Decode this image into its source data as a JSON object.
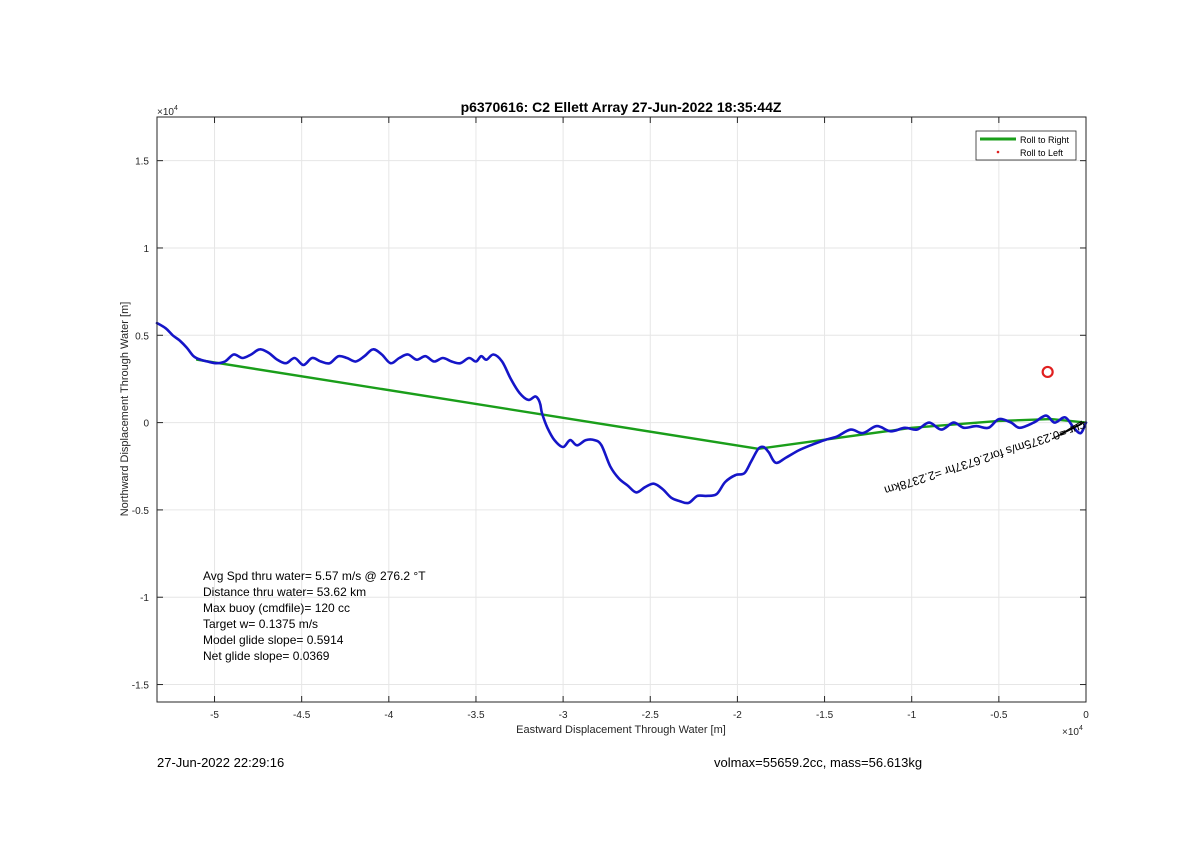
{
  "chart_data": {
    "type": "line",
    "title": "p6370616: C2 Ellett Array 27-Jun-2022 18:35:44Z",
    "xlabel": "Eastward Displacement Through Water [m]",
    "ylabel": "Northward Displacement Through Water [m]",
    "x_exponent_label": "×10",
    "x_exponent": "4",
    "y_exponent_label": "×10",
    "y_exponent": "4",
    "xlim": [
      -53300,
      0
    ],
    "ylim": [
      -16000,
      17500
    ],
    "xticks": [
      -50000,
      -45000,
      -40000,
      -35000,
      -30000,
      -25000,
      -20000,
      -15000,
      -10000,
      -5000,
      0
    ],
    "xtick_labels": [
      "-5",
      "-4.5",
      "-4",
      "-3.5",
      "-3",
      "-2.5",
      "-2",
      "-1.5",
      "-1",
      "-0.5",
      "0"
    ],
    "yticks": [
      -15000,
      -10000,
      -5000,
      0,
      5000,
      10000,
      15000
    ],
    "ytick_labels": [
      "-1.5",
      "-1",
      "-0.5",
      "0",
      "0.5",
      "1",
      "1.5"
    ],
    "grid": true,
    "legend_position": "top-right",
    "legend": [
      {
        "label": "Roll to Right",
        "color": "#1a9e1a",
        "style": "line"
      },
      {
        "label": "Roll to Left",
        "color": "#e02020",
        "style": "dot"
      }
    ],
    "series": [
      {
        "name": "Roll to Right",
        "color": "#1a9e1a",
        "x": [
          0,
          -2000,
          -5000,
          -10000,
          -18800,
          -51000
        ],
        "y": [
          0,
          200,
          100,
          -300,
          -1500,
          3600
        ]
      },
      {
        "color": "#1515c8",
        "x": [
          0,
          -300,
          -700,
          -1200,
          -1800,
          -2300,
          -3000,
          -3800,
          -4300,
          -5000,
          -5600,
          -6300,
          -7000,
          -7600,
          -8300,
          -9000,
          -9700,
          -10400,
          -11200,
          -12000,
          -12800,
          -13500,
          -14300,
          -15000,
          -15800,
          -16500,
          -17200,
          -17800,
          -18200,
          -18500,
          -18800,
          -19200,
          -19600,
          -20100,
          -20700,
          -21200,
          -21800,
          -22300,
          -22800,
          -23300,
          -23800,
          -24300,
          -24800,
          -25300,
          -25800,
          -26300,
          -26800,
          -27300,
          -27800,
          -28200,
          -28700,
          -29200,
          -29600,
          -30000,
          -30500,
          -30900,
          -31200,
          -31300,
          -31400,
          -31600,
          -32000,
          -32500,
          -33000,
          -33500,
          -34000,
          -34400,
          -34700,
          -35000,
          -35400,
          -35900,
          -36400,
          -36900,
          -37400,
          -37900,
          -38400,
          -38900,
          -39400,
          -39900,
          -40400,
          -40900,
          -41400,
          -41900,
          -42400,
          -42900,
          -43400,
          -43900,
          -44400,
          -44900,
          -45400,
          -45900,
          -46400,
          -46900,
          -47400,
          -47900,
          -48400,
          -48900,
          -49400,
          -49900,
          -50400,
          -50800,
          -51200,
          -51600,
          -52000,
          -52400,
          -52800,
          -53300
        ],
        "y": [
          0,
          -600,
          -300,
          300,
          0,
          400,
          0,
          -300,
          0,
          200,
          -300,
          -200,
          -300,
          0,
          -400,
          0,
          -400,
          -300,
          -500,
          -200,
          -600,
          -400,
          -800,
          -1000,
          -1300,
          -1600,
          -2000,
          -2300,
          -1700,
          -1400,
          -1500,
          -2200,
          -2900,
          -3000,
          -3400,
          -4100,
          -4200,
          -4200,
          -4600,
          -4500,
          -4300,
          -3800,
          -3500,
          -3700,
          -4000,
          -3600,
          -3200,
          -2500,
          -1300,
          -1000,
          -1000,
          -1300,
          -1000,
          -1400,
          -1000,
          -300,
          500,
          1000,
          1300,
          1500,
          1300,
          1700,
          2500,
          3500,
          3900,
          3600,
          3800,
          3500,
          3700,
          3400,
          3500,
          3700,
          3500,
          3800,
          3600,
          3900,
          3700,
          3400,
          3900,
          4200,
          3800,
          3500,
          3700,
          3800,
          3400,
          3500,
          3700,
          3300,
          3700,
          3400,
          3600,
          4000,
          4200,
          3900,
          3700,
          3900,
          3500,
          3400,
          3500,
          3600,
          3800,
          4300,
          4700,
          5000,
          5400,
          5700
        ]
      }
    ],
    "markers": [
      {
        "label": "Roll to Left",
        "x": -2200,
        "y": 2900,
        "color": "#e02020",
        "shape": "circle"
      }
    ],
    "annotations": [
      {
        "text": "Avg Spd thru water=  5.57 m/s @ 276.2 °T"
      },
      {
        "text": "Distance thru water= 53.62 km"
      },
      {
        "text": "Max buoy (cmdfile)= 120 cc"
      },
      {
        "text": "Target w= 0.1375 m/s"
      },
      {
        "text": "Model glide slope= 0.5914"
      },
      {
        "text": "Net glide slope= 0.0369"
      }
    ],
    "rotated_annotation": "cur =0.2375m/s for2.6737hr =2.2378km"
  },
  "footer": {
    "timestamp": "27-Jun-2022 22:29:16",
    "vol_mass": "volmax=55659.2cc, mass=56.613kg"
  }
}
